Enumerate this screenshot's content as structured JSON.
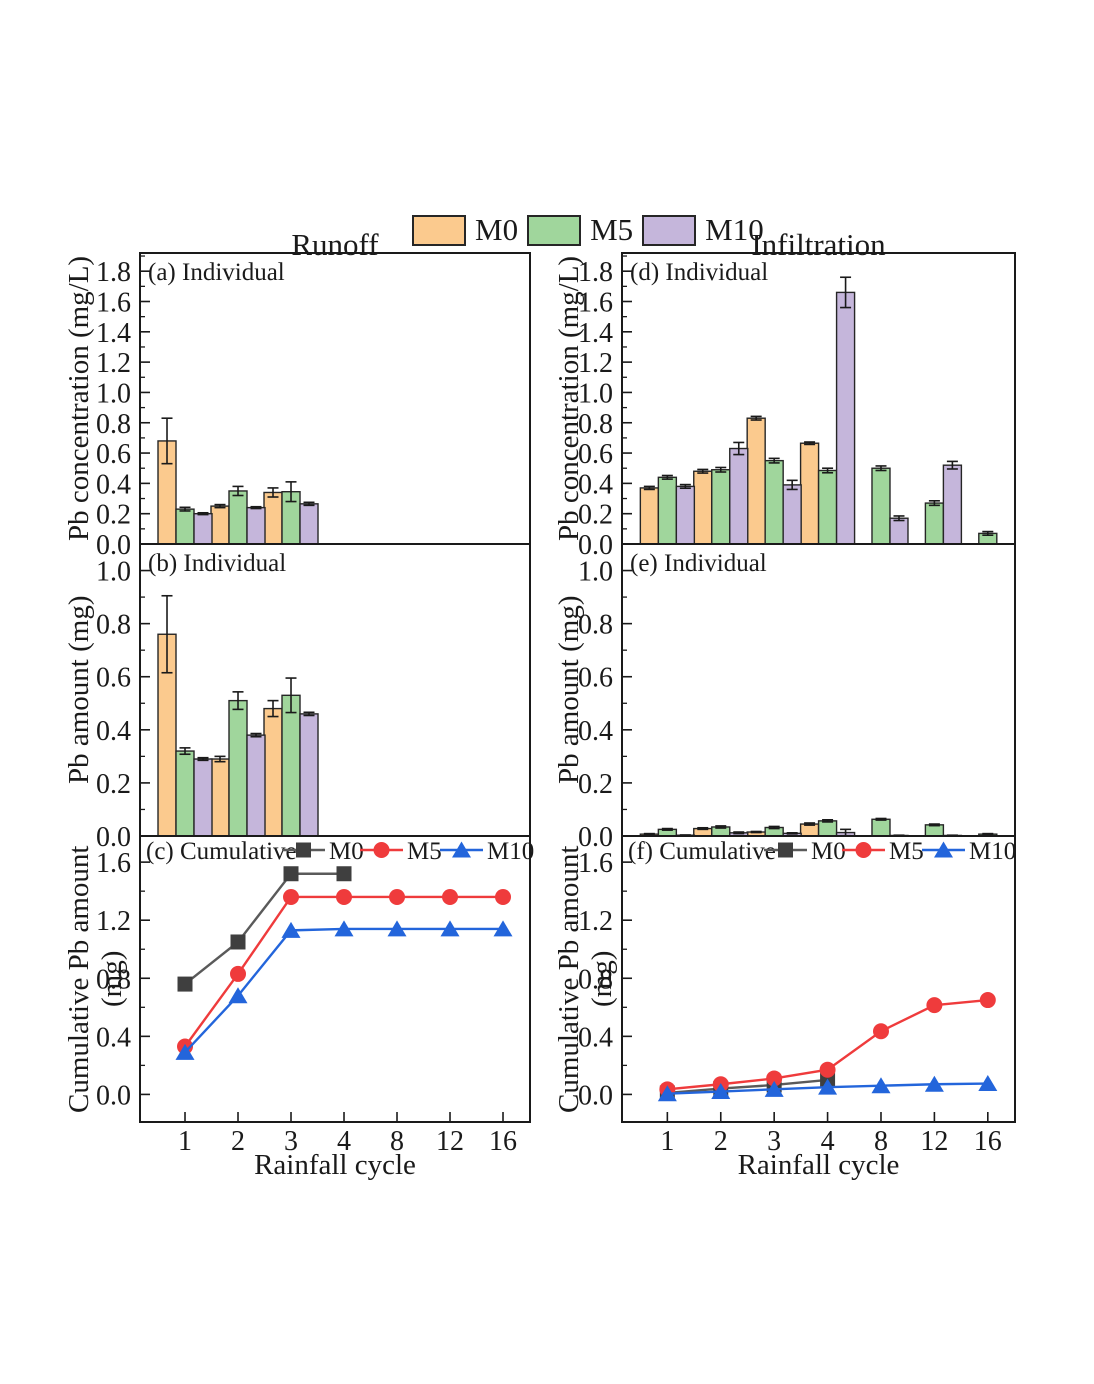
{
  "figure": {
    "column_titles": [
      "Runoff",
      "Infiltration"
    ],
    "xlabel": "Rainfall cycle",
    "categories": [
      "1",
      "2",
      "3",
      "4",
      "8",
      "12",
      "16"
    ],
    "legend": {
      "items": [
        {
          "label": "M0",
          "color": "#FBCA8E"
        },
        {
          "label": "M5",
          "color": "#A0D69C"
        },
        {
          "label": "M10",
          "color": "#C5B6DB"
        }
      ]
    },
    "colors": {
      "bar_edge": "#262626",
      "axis": "#1a1a1a",
      "m0_line": "#5a5a5a",
      "m0_marker": "#3f3f3f",
      "m5": "#EF3B3C",
      "m10": "#2365DB"
    }
  },
  "chart_data": [
    {
      "id": "a",
      "label": "(a) Individual",
      "type": "bar",
      "ylabel": "Pb concentration (mg/L)",
      "ylim": [
        0,
        1.92
      ],
      "minor_step": 0.1,
      "show_xticks": false,
      "yticks": [
        0,
        0.2,
        0.4,
        0.6,
        0.8,
        1.0,
        1.2,
        1.4,
        1.6,
        1.8
      ],
      "ytick_labels": [
        "0.0",
        "0.2",
        "0.4",
        "0.6",
        "0.8",
        "1.0",
        "1.2",
        "1.4",
        "1.6",
        "1.8"
      ],
      "series": [
        {
          "name": "M0",
          "color": "#FBCA8E",
          "values": [
            0.68,
            0.25,
            0.34,
            null,
            null,
            null,
            null
          ],
          "errors": [
            0.15,
            0.01,
            0.03,
            null,
            null,
            null,
            null
          ]
        },
        {
          "name": "M5",
          "color": "#A0D69C",
          "values": [
            0.23,
            0.35,
            0.345,
            null,
            null,
            null,
            null
          ],
          "errors": [
            0.012,
            0.03,
            0.065,
            null,
            null,
            null,
            null
          ]
        },
        {
          "name": "M10",
          "color": "#C5B6DB",
          "values": [
            0.2,
            0.24,
            0.265,
            null,
            null,
            null,
            null
          ],
          "errors": [
            0.006,
            0.006,
            0.01,
            null,
            null,
            null,
            null
          ]
        }
      ]
    },
    {
      "id": "b",
      "label": "(b) Individual",
      "type": "bar",
      "ylabel": "Pb amount  (mg)",
      "ylim": [
        0,
        1.1
      ],
      "minor_step": 0.1,
      "show_xticks": false,
      "yticks": [
        0,
        0.2,
        0.4,
        0.6,
        0.8,
        1.0
      ],
      "ytick_labels": [
        "0.0",
        "0.2",
        "0.4",
        "0.6",
        "0.8",
        "1.0"
      ],
      "series": [
        {
          "name": "M0",
          "color": "#FBCA8E",
          "values": [
            0.76,
            0.29,
            0.48,
            null,
            null,
            null,
            null
          ],
          "errors": [
            0.145,
            0.01,
            0.03,
            null,
            null,
            null,
            null
          ]
        },
        {
          "name": "M5",
          "color": "#A0D69C",
          "values": [
            0.32,
            0.51,
            0.53,
            null,
            null,
            null,
            null
          ],
          "errors": [
            0.012,
            0.033,
            0.065,
            null,
            null,
            null,
            null
          ]
        },
        {
          "name": "M10",
          "color": "#C5B6DB",
          "values": [
            0.29,
            0.38,
            0.46,
            null,
            null,
            null,
            null
          ],
          "errors": [
            0.005,
            0.006,
            0.006,
            null,
            null,
            null,
            null
          ]
        }
      ]
    },
    {
      "id": "c",
      "label": "(c) Cumulative",
      "type": "line",
      "ylabel": "Cumulative Pb amount (mg)",
      "ylim": [
        -0.19,
        1.78
      ],
      "minor_step": 0.2,
      "show_xticks": true,
      "yticks": [
        0,
        0.4,
        0.8,
        1.2,
        1.6
      ],
      "ytick_labels": [
        "0.0",
        "0.4",
        "0.8",
        "1.2",
        "1.6"
      ],
      "series": [
        {
          "name": "M0",
          "marker": "square",
          "line_color": "#5a5a5a",
          "marker_color": "#3f3f3f",
          "values": [
            0.76,
            1.05,
            1.52,
            1.52,
            null,
            null,
            null
          ]
        },
        {
          "name": "M5",
          "marker": "circle",
          "line_color": "#EF3B3C",
          "marker_color": "#EF3B3C",
          "values": [
            0.33,
            0.83,
            1.36,
            1.36,
            1.36,
            1.36,
            1.36
          ]
        },
        {
          "name": "M10",
          "marker": "triangle",
          "line_color": "#2365DB",
          "marker_color": "#2365DB",
          "values": [
            0.29,
            0.68,
            1.13,
            1.14,
            1.14,
            1.14,
            1.14
          ]
        }
      ]
    },
    {
      "id": "d",
      "label": "(d) Individual",
      "type": "bar",
      "ylabel": "Pb concentration (mg/L)",
      "ylim": [
        0,
        1.92
      ],
      "minor_step": 0.1,
      "show_xticks": false,
      "yticks": [
        0,
        0.2,
        0.4,
        0.6,
        0.8,
        1.0,
        1.2,
        1.4,
        1.6,
        1.8
      ],
      "ytick_labels": [
        "0.0",
        "0.2",
        "0.4",
        "0.6",
        "0.8",
        "1.0",
        "1.2",
        "1.4",
        "1.6",
        "1.8"
      ],
      "series": [
        {
          "name": "M0",
          "color": "#FBCA8E",
          "values": [
            0.37,
            0.48,
            0.83,
            0.665,
            null,
            null,
            null
          ],
          "errors": [
            0.01,
            0.012,
            0.012,
            0.008,
            null,
            null,
            null
          ]
        },
        {
          "name": "M5",
          "color": "#A0D69C",
          "values": [
            0.44,
            0.49,
            0.55,
            0.485,
            0.5,
            0.27,
            0.07
          ],
          "errors": [
            0.012,
            0.015,
            0.015,
            0.015,
            0.015,
            0.015,
            0.012
          ]
        },
        {
          "name": "M10",
          "color": "#C5B6DB",
          "values": [
            0.38,
            0.63,
            0.39,
            1.66,
            0.17,
            0.52,
            null
          ],
          "errors": [
            0.012,
            0.04,
            0.03,
            0.1,
            0.015,
            0.025,
            null
          ]
        }
      ]
    },
    {
      "id": "e",
      "label": "(e) Individual",
      "type": "bar",
      "ylabel": "Pb amount  (mg)",
      "ylim": [
        0,
        1.1
      ],
      "minor_step": 0.1,
      "show_xticks": false,
      "yticks": [
        0,
        0.2,
        0.4,
        0.6,
        0.8,
        1.0
      ],
      "ytick_labels": [
        "0.0",
        "0.2",
        "0.4",
        "0.6",
        "0.8",
        "1.0"
      ],
      "series": [
        {
          "name": "M0",
          "color": "#FBCA8E",
          "values": [
            0.007,
            0.028,
            0.015,
            0.045,
            null,
            null,
            null
          ],
          "errors": [
            0.002,
            0.003,
            0.002,
            0.004,
            null,
            null,
            null
          ]
        },
        {
          "name": "M5",
          "color": "#A0D69C",
          "values": [
            0.025,
            0.034,
            0.032,
            0.057,
            0.063,
            0.042,
            0.007
          ],
          "errors": [
            0.003,
            0.004,
            0.004,
            0.004,
            0.003,
            0.003,
            0.002
          ]
        },
        {
          "name": "M10",
          "color": "#C5B6DB",
          "values": [
            0.003,
            0.012,
            0.01,
            0.013,
            0.002,
            0.002,
            null
          ],
          "errors": [
            0.001,
            0.003,
            0.002,
            0.012,
            0.001,
            0.001,
            null
          ]
        }
      ]
    },
    {
      "id": "f",
      "label": "(f) Cumulative",
      "type": "line",
      "ylabel": "Cumulative Pb amount (mg)",
      "ylim": [
        -0.19,
        1.78
      ],
      "minor_step": 0.2,
      "show_xticks": true,
      "yticks": [
        0,
        0.4,
        0.8,
        1.2,
        1.6
      ],
      "ytick_labels": [
        "0.0",
        "0.4",
        "0.8",
        "1.2",
        "1.6"
      ],
      "series": [
        {
          "name": "M0",
          "marker": "square",
          "line_color": "#5a5a5a",
          "marker_color": "#3f3f3f",
          "values": [
            0.01,
            0.04,
            0.065,
            0.1,
            null,
            null,
            null
          ]
        },
        {
          "name": "M5",
          "marker": "circle",
          "line_color": "#EF3B3C",
          "marker_color": "#EF3B3C",
          "values": [
            0.035,
            0.07,
            0.11,
            0.17,
            0.435,
            0.615,
            0.65
          ]
        },
        {
          "name": "M10",
          "marker": "triangle",
          "line_color": "#2365DB",
          "marker_color": "#2365DB",
          "values": [
            0.005,
            0.02,
            0.035,
            0.05,
            0.06,
            0.07,
            0.075
          ]
        }
      ]
    }
  ]
}
